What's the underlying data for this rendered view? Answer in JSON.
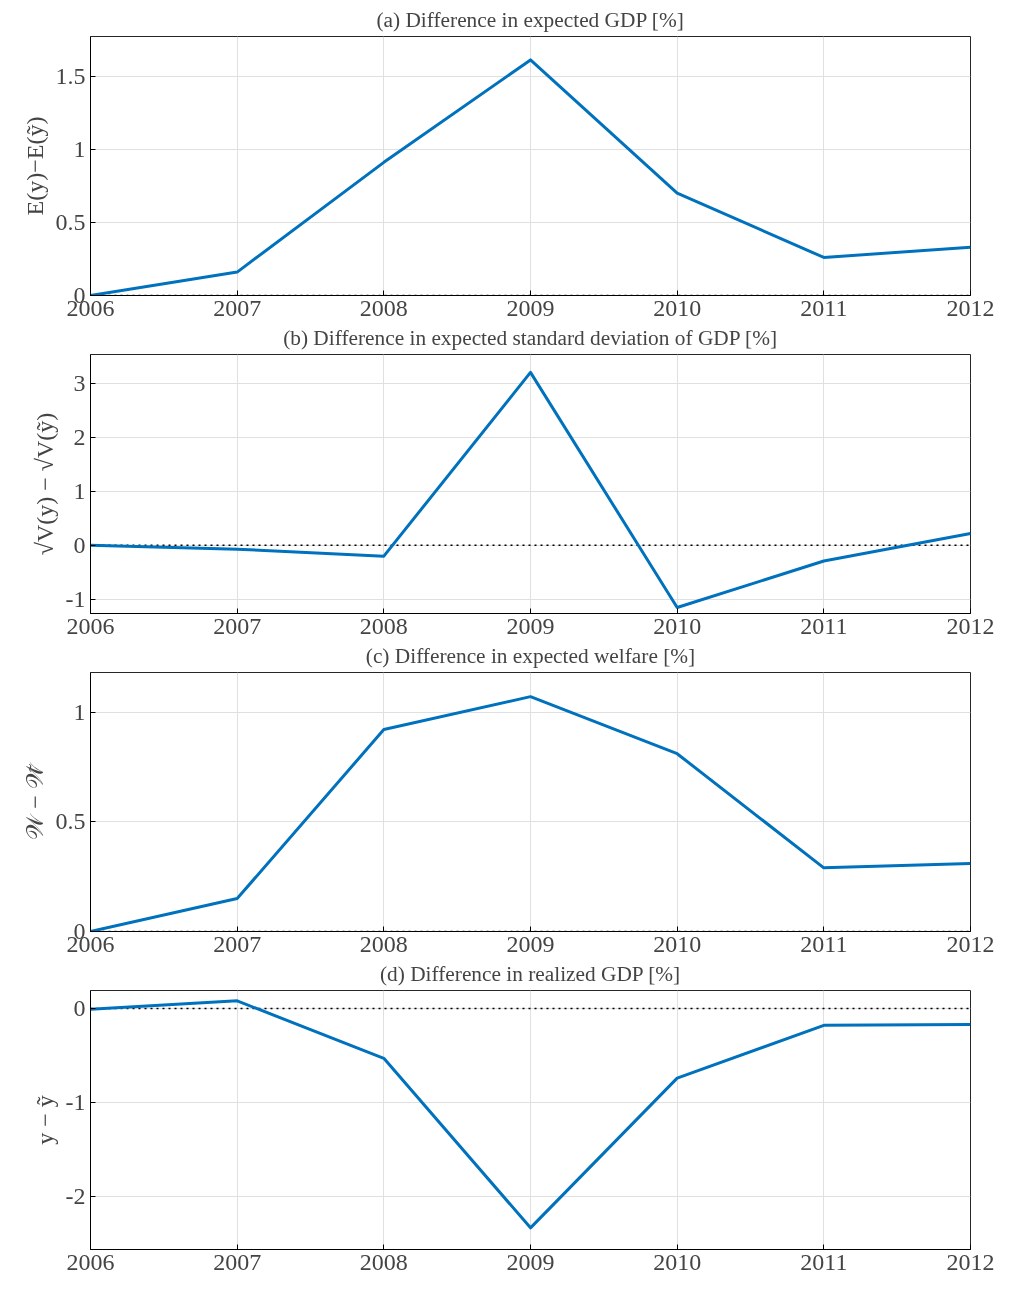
{
  "chart_data": [
    {
      "type": "line",
      "title": "(a) Difference in expected GDP [%]",
      "ylabel": "E(y)−E(ỹ)",
      "x": [
        2006,
        2007,
        2008,
        2009,
        2010,
        2011,
        2012
      ],
      "series": [
        {
          "color": "#0072bd",
          "values": [
            0,
            0.16,
            0.91,
            1.61,
            0.7,
            0.26,
            0.33
          ]
        }
      ],
      "xlim": [
        2006,
        2012
      ],
      "xticks": [
        2006,
        2007,
        2008,
        2009,
        2010,
        2011,
        2012
      ],
      "ylim": [
        0,
        1.77
      ],
      "yticks": [
        0,
        0.5,
        1,
        1.5
      ],
      "grid": true,
      "ref_lines": [
        {
          "axis": "y",
          "value": 0,
          "color": "#000000",
          "line_style": "dotted"
        }
      ]
    },
    {
      "type": "line",
      "title": "(b) Difference in expected standard deviation of GDP [%]",
      "ylabel": "√V(y) − √V(ỹ)",
      "x": [
        2006,
        2007,
        2008,
        2009,
        2010,
        2011,
        2012
      ],
      "series": [
        {
          "color": "#0072bd",
          "values": [
            0,
            -0.07,
            -0.2,
            3.2,
            -1.15,
            -0.29,
            0.22
          ]
        }
      ],
      "xlim": [
        2006,
        2012
      ],
      "xticks": [
        2006,
        2007,
        2008,
        2009,
        2010,
        2011,
        2012
      ],
      "ylim": [
        -1.26,
        3.53
      ],
      "yticks": [
        -1,
        0,
        1,
        2,
        3
      ],
      "grid": true,
      "ref_lines": [
        {
          "axis": "y",
          "value": 0,
          "color": "#000000",
          "line_style": "dotted"
        }
      ]
    },
    {
      "type": "line",
      "title": "(c) Difference in expected welfare [%]",
      "ylabel": "𝒲 − 𝒲̃",
      "x": [
        2006,
        2007,
        2008,
        2009,
        2010,
        2011,
        2012
      ],
      "series": [
        {
          "color": "#0072bd",
          "values": [
            0,
            0.15,
            0.92,
            1.07,
            0.81,
            0.29,
            0.31
          ]
        }
      ],
      "xlim": [
        2006,
        2012
      ],
      "xticks": [
        2006,
        2007,
        2008,
        2009,
        2010,
        2011,
        2012
      ],
      "ylim": [
        0,
        1.18
      ],
      "yticks": [
        0,
        0.5,
        1
      ],
      "grid": true,
      "ref_lines": [
        {
          "axis": "y",
          "value": 0,
          "color": "#000000",
          "line_style": "dotted"
        }
      ]
    },
    {
      "type": "line",
      "title": "(d) Difference in realized GDP [%]",
      "ylabel": "y − ỹ",
      "x": [
        2006,
        2007,
        2008,
        2009,
        2010,
        2011,
        2012
      ],
      "series": [
        {
          "color": "#0072bd",
          "values": [
            -0.01,
            0.08,
            -0.53,
            -2.33,
            -0.74,
            -0.18,
            -0.17
          ]
        }
      ],
      "xlim": [
        2006,
        2012
      ],
      "xticks": [
        2006,
        2007,
        2008,
        2009,
        2010,
        2011,
        2012
      ],
      "ylim": [
        -2.56,
        0.19
      ],
      "yticks": [
        -2,
        -1,
        0
      ],
      "grid": true,
      "ref_lines": [
        {
          "axis": "y",
          "value": 0,
          "color": "#000000",
          "line_style": "dotted"
        }
      ]
    }
  ]
}
